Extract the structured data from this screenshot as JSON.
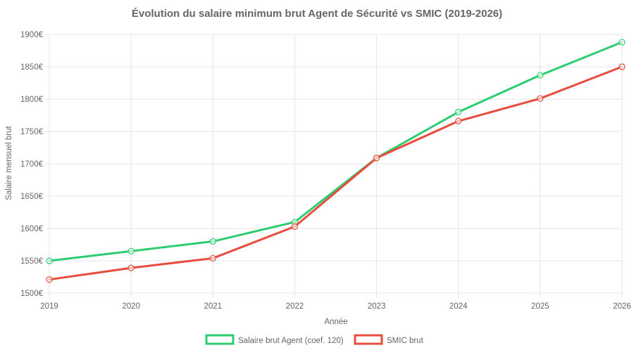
{
  "chart_data": {
    "type": "line",
    "title": "Évolution du salaire minimum brut Agent de Sécurité vs SMIC (2019-2026)",
    "xlabel": "Année",
    "ylabel": "Salaire mensuel brut",
    "categories": [
      "2019",
      "2020",
      "2021",
      "2022",
      "2023",
      "2024",
      "2025",
      "2026"
    ],
    "ylim": [
      1500,
      1900
    ],
    "yticks": [
      1500,
      1550,
      1600,
      1650,
      1700,
      1750,
      1800,
      1850,
      1900
    ],
    "ytick_labels": [
      "1500€",
      "1550€",
      "1600€",
      "1650€",
      "1700€",
      "1750€",
      "1800€",
      "1850€",
      "1900€"
    ],
    "grid": true,
    "legend_position": "bottom",
    "series": [
      {
        "name": "Salaire brut Agent (coef. 120)",
        "color": "#2ecc71",
        "values": [
          1550,
          1565,
          1580,
          1610,
          1709,
          1780,
          1837,
          1888
        ]
      },
      {
        "name": "SMIC brut",
        "color": "#e74c3c",
        "values": [
          1521,
          1539,
          1554,
          1603,
          1709,
          1766,
          1801,
          1850
        ]
      }
    ]
  }
}
